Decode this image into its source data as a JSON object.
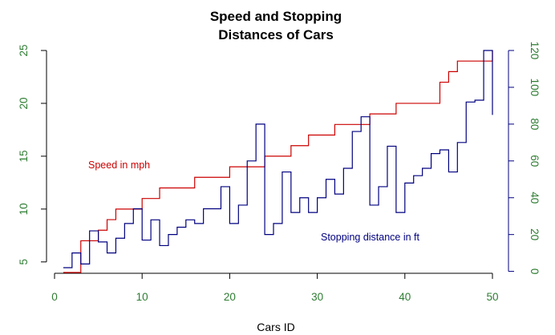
{
  "chart_data": {
    "type": "line",
    "title_lines": [
      "Speed and Stopping",
      "Distances of Cars"
    ],
    "xlabel": "Cars ID",
    "x": [
      1,
      2,
      3,
      4,
      5,
      6,
      7,
      8,
      9,
      10,
      11,
      12,
      13,
      14,
      15,
      16,
      17,
      18,
      19,
      20,
      21,
      22,
      23,
      24,
      25,
      26,
      27,
      28,
      29,
      30,
      31,
      32,
      33,
      34,
      35,
      36,
      37,
      38,
      39,
      40,
      41,
      42,
      43,
      44,
      45,
      46,
      47,
      48,
      49,
      50
    ],
    "xlim": [
      0,
      50
    ],
    "x_ticks": [
      0,
      10,
      20,
      30,
      40,
      50
    ],
    "y_left_ticks": [
      5,
      10,
      15,
      20,
      25
    ],
    "y_right_ticks": [
      0,
      20,
      40,
      60,
      80,
      100,
      120
    ],
    "y_left_range": [
      4,
      25
    ],
    "y_right_range": [
      2,
      120
    ],
    "series": [
      {
        "name": "Speed in mph",
        "axis": "left",
        "color": "#cc0000",
        "step": "post",
        "values": [
          4,
          4,
          7,
          7,
          8,
          9,
          10,
          10,
          10,
          11,
          11,
          12,
          12,
          12,
          12,
          13,
          13,
          13,
          13,
          14,
          14,
          14,
          14,
          15,
          15,
          15,
          16,
          16,
          17,
          17,
          17,
          18,
          18,
          18,
          18,
          19,
          19,
          19,
          20,
          20,
          20,
          20,
          20,
          22,
          23,
          24,
          24,
          24,
          24,
          25
        ]
      },
      {
        "name": "Stopping distance in ft",
        "axis": "right",
        "color": "#000080",
        "step": "post",
        "values": [
          2,
          10,
          4,
          22,
          16,
          10,
          18,
          26,
          34,
          17,
          28,
          14,
          20,
          24,
          28,
          26,
          34,
          34,
          46,
          26,
          36,
          60,
          80,
          20,
          26,
          54,
          32,
          40,
          32,
          40,
          50,
          42,
          56,
          76,
          84,
          36,
          46,
          68,
          32,
          48,
          52,
          56,
          64,
          66,
          54,
          70,
          92,
          93,
          120,
          85
        ]
      }
    ],
    "legend_texts": [
      {
        "text": "Speed in mph",
        "color": "#cc0000"
      },
      {
        "text": "Stopping distance in ft",
        "color": "#000080"
      }
    ],
    "tick_color": "#2e7d32",
    "right_axis_color": "#000080",
    "grid": false
  }
}
